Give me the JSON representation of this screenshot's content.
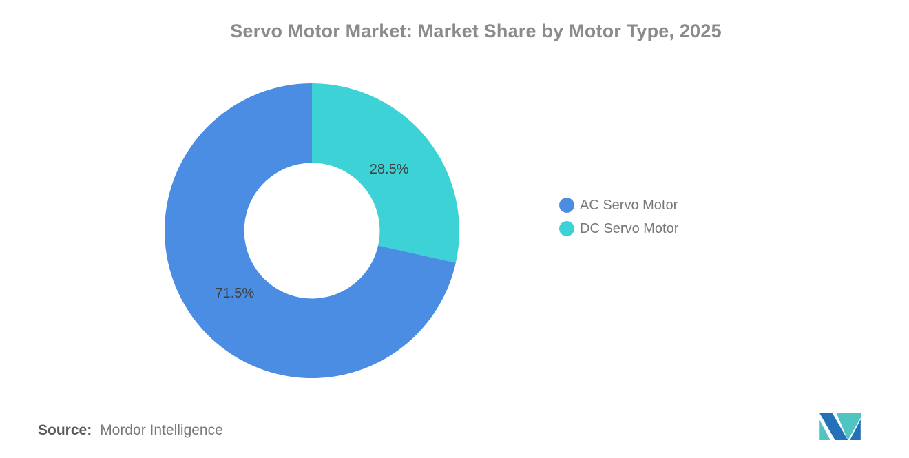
{
  "title": "Servo Motor Market: Market Share by Motor Type, 2025",
  "chart_data": {
    "type": "pie",
    "subtype": "donut",
    "title": "Servo Motor Market: Market Share by Motor Type, 2025",
    "unit": "%",
    "categories": [
      "AC Servo Motor",
      "DC Servo Motor"
    ],
    "values": [
      71.5,
      28.5
    ],
    "segments": [
      {
        "label": "AC Servo Motor",
        "value": 71.5,
        "display": "71.5%",
        "color": "#4A8DE3"
      },
      {
        "label": "DC Servo Motor",
        "value": 28.5,
        "display": "28.5%",
        "color": "#3DD2D6"
      }
    ],
    "draw_clockwise_from_top": [
      "DC Servo Motor",
      "AC Servo Motor"
    ],
    "legend_position": "right",
    "donut_hole_ratio": 0.46,
    "label_color": "#3F4042",
    "background": "#ffffff"
  },
  "source": {
    "label": "Source:",
    "name": "Mordor Intelligence"
  },
  "logo": {
    "name": "Mordor Intelligence logo",
    "blue": "#2471B8",
    "teal": "#4FC4C0"
  }
}
